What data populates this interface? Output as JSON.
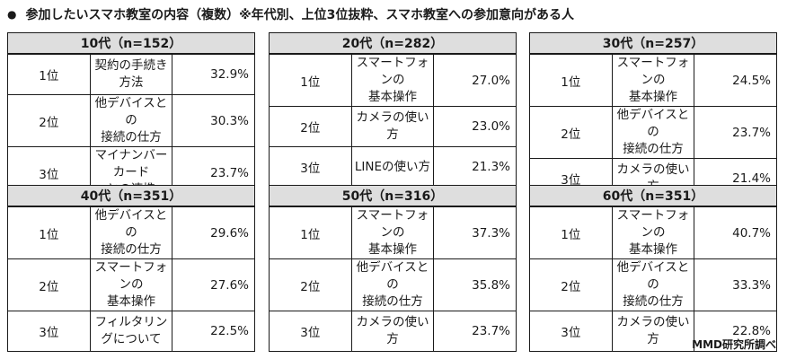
{
  "title": "参加したいスマホ教室の内容（複数）※年代別、上位3位抜粋、スマホ教室への参加意向がある人",
  "bullet": "●",
  "footer": "MMD研究所調べ",
  "panels": [
    {
      "header": "10代（n=152）",
      "rows": [
        {
          "rank": "1位",
          "item": "契約の手続き方法",
          "pct": "32.9%"
        },
        {
          "rank": "2位",
          "item": "他デバイスとの\n接続の仕方",
          "pct": "30.3%"
        },
        {
          "rank": "3位",
          "item": "マイナンバーカード\nとの連携",
          "pct": "23.7%"
        }
      ]
    },
    {
      "header": "20代（n=282）",
      "rows": [
        {
          "rank": "1位",
          "item": "スマートフォンの\n基本操作",
          "pct": "27.0%"
        },
        {
          "rank": "2位",
          "item": "カメラの使い方",
          "pct": "23.0%"
        },
        {
          "rank": "3位",
          "item": "LINEの使い方",
          "pct": "21.3%"
        }
      ]
    },
    {
      "header": "30代（n=257）",
      "rows": [
        {
          "rank": "1位",
          "item": "スマートフォンの\n基本操作",
          "pct": "24.5%"
        },
        {
          "rank": "2位",
          "item": "他デバイスとの\n接続の仕方",
          "pct": "23.7%"
        },
        {
          "rank": "3位",
          "item": "カメラの使い方",
          "pct": "21.4%"
        }
      ]
    },
    {
      "header": "40代（n=351）",
      "rows": [
        {
          "rank": "1位",
          "item": "他デバイスとの\n接続の仕方",
          "pct": "29.6%"
        },
        {
          "rank": "2位",
          "item": "スマートフォンの\n基本操作",
          "pct": "27.6%"
        },
        {
          "rank": "3位",
          "item": "フィルタリングについて",
          "pct": "22.5%"
        }
      ]
    },
    {
      "header": "50代（n=316）",
      "rows": [
        {
          "rank": "1位",
          "item": "スマートフォンの\n基本操作",
          "pct": "37.3%"
        },
        {
          "rank": "2位",
          "item": "他デバイスとの\n接続の仕方",
          "pct": "35.8%"
        },
        {
          "rank": "3位",
          "item": "カメラの使い方",
          "pct": "23.7%"
        }
      ]
    },
    {
      "header": "60代（n=351）",
      "rows": [
        {
          "rank": "1位",
          "item": "スマートフォンの\n基本操作",
          "pct": "40.7%"
        },
        {
          "rank": "2位",
          "item": "他デバイスとの\n接続の仕方",
          "pct": "33.3%"
        },
        {
          "rank": "3位",
          "item": "カメラの使い方",
          "pct": "22.8%"
        }
      ]
    }
  ]
}
